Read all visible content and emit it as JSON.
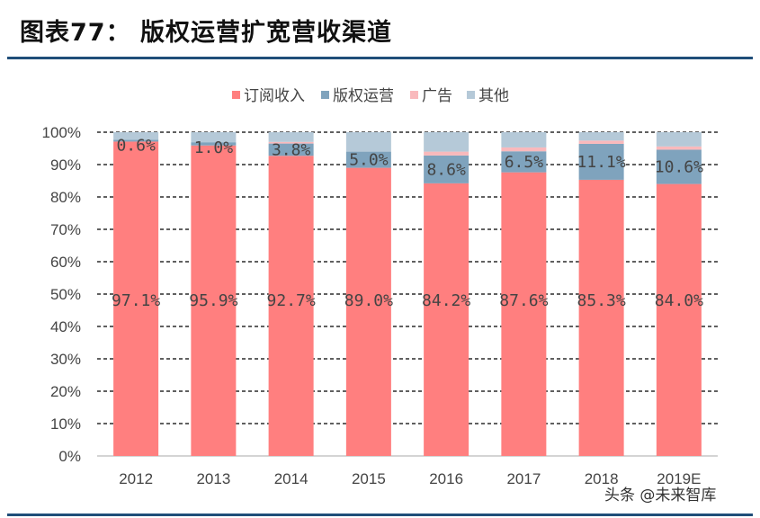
{
  "title": "图表77：  版权运营扩宽营收渠道",
  "watermark": "头条 @未来智库",
  "chart_data": {
    "type": "bar",
    "stacked": true,
    "categories": [
      "2012",
      "2013",
      "2014",
      "2015",
      "2016",
      "2017",
      "2018",
      "2019E"
    ],
    "series": [
      {
        "name": "订阅收入",
        "color": "#FF7F7F",
        "values": [
          97.1,
          95.9,
          92.7,
          89.0,
          84.2,
          87.6,
          85.3,
          84.0
        ],
        "labels": [
          "97.1%",
          "95.9%",
          "92.7%",
          "89.0%",
          "84.2%",
          "87.6%",
          "85.3%",
          "84.0%"
        ]
      },
      {
        "name": "版权运营",
        "color": "#7FA3BD",
        "values": [
          0.6,
          1.0,
          3.8,
          5.0,
          8.6,
          6.5,
          11.1,
          10.6
        ],
        "labels": [
          "0.6%",
          "1.0%",
          "3.8%",
          "5.0%",
          "8.6%",
          "6.5%",
          "11.1%",
          "10.6%"
        ]
      },
      {
        "name": "广告",
        "color": "#F9B9BC",
        "values": [
          0,
          0,
          0.5,
          0,
          1.2,
          1.2,
          1.0,
          1.0
        ]
      },
      {
        "name": "其他",
        "color": "#B5C9D8",
        "values": [
          2.3,
          3.1,
          3.0,
          6.0,
          6.0,
          4.7,
          2.6,
          4.4
        ]
      }
    ],
    "yticks": [
      "0%",
      "10%",
      "20%",
      "30%",
      "40%",
      "50%",
      "60%",
      "70%",
      "80%",
      "90%",
      "100%"
    ],
    "ylim": [
      0,
      100
    ],
    "grid": true,
    "legend": "top"
  }
}
